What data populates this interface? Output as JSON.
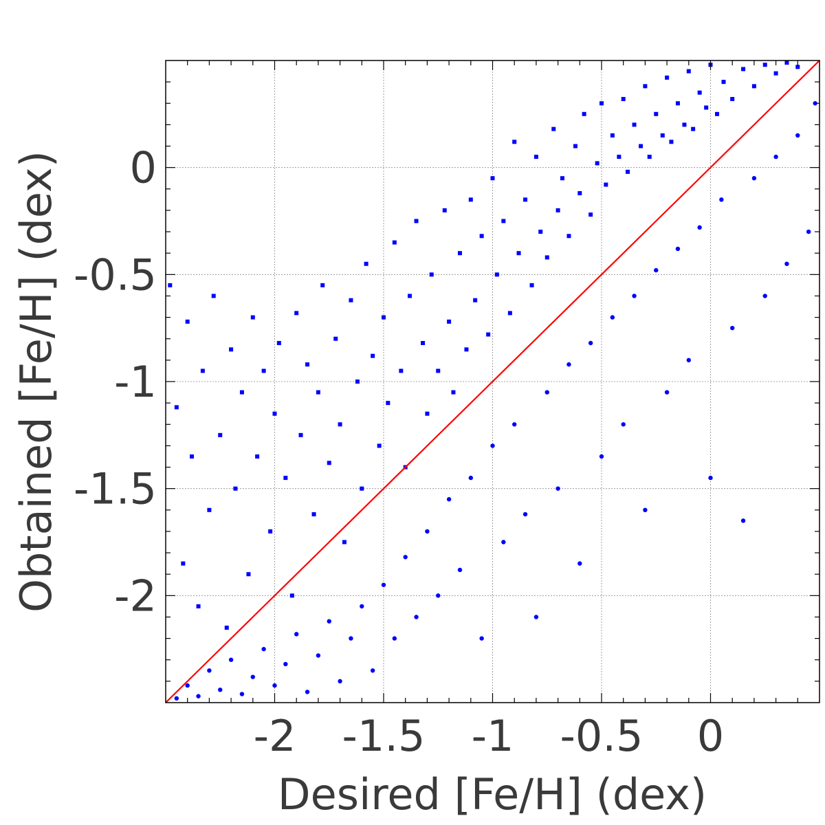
{
  "chart_data": {
    "type": "scatter",
    "title": "",
    "xlabel": "Desired [Fe/H] (dex)",
    "ylabel": "Obtained [Fe/H] (dex)",
    "xlim": [
      -2.5,
      0.5
    ],
    "ylim": [
      -2.5,
      0.5
    ],
    "x_ticks": [
      {
        "value": -2,
        "label": "-2"
      },
      {
        "value": -1.5,
        "label": "-1.5"
      },
      {
        "value": -1,
        "label": "-1"
      },
      {
        "value": -0.5,
        "label": "-0.5"
      },
      {
        "value": 0,
        "label": "0"
      }
    ],
    "y_ticks": [
      {
        "value": -2,
        "label": "-2"
      },
      {
        "value": -1.5,
        "label": "-1.5"
      },
      {
        "value": -1,
        "label": "-1"
      },
      {
        "value": -0.5,
        "label": "-0.5"
      },
      {
        "value": 0,
        "label": "0"
      }
    ],
    "grid": true,
    "series": [
      {
        "marker": "square",
        "color": "#0000ff",
        "points": [
          [
            -2.48,
            -0.55
          ],
          [
            -2.45,
            -1.12
          ],
          [
            -2.42,
            -1.85
          ],
          [
            -2.4,
            -0.72
          ],
          [
            -2.38,
            -1.35
          ],
          [
            -2.35,
            -2.05
          ],
          [
            -2.33,
            -0.95
          ],
          [
            -2.3,
            -1.6
          ],
          [
            -2.28,
            -0.6
          ],
          [
            -2.25,
            -1.25
          ],
          [
            -2.22,
            -2.15
          ],
          [
            -2.2,
            -0.85
          ],
          [
            -2.18,
            -1.5
          ],
          [
            -2.15,
            -1.05
          ],
          [
            -2.12,
            -1.9
          ],
          [
            -2.1,
            -0.7
          ],
          [
            -2.08,
            -1.35
          ],
          [
            -2.05,
            -0.95
          ],
          [
            -2.02,
            -1.7
          ],
          [
            -2.0,
            -1.15
          ],
          [
            -1.98,
            -0.82
          ],
          [
            -1.95,
            -1.45
          ],
          [
            -1.92,
            -2.0
          ],
          [
            -1.9,
            -0.68
          ],
          [
            -1.88,
            -1.25
          ],
          [
            -1.85,
            -0.92
          ],
          [
            -1.82,
            -1.62
          ],
          [
            -1.8,
            -1.05
          ],
          [
            -1.78,
            -0.55
          ],
          [
            -1.75,
            -1.38
          ],
          [
            -1.72,
            -0.8
          ],
          [
            -1.7,
            -1.2
          ],
          [
            -1.68,
            -1.75
          ],
          [
            -1.65,
            -0.62
          ],
          [
            -1.62,
            -1.0
          ],
          [
            -1.6,
            -1.5
          ],
          [
            -1.58,
            -0.45
          ],
          [
            -1.55,
            -0.88
          ],
          [
            -1.52,
            -1.3
          ],
          [
            -1.5,
            -0.7
          ],
          [
            -1.48,
            -1.1
          ],
          [
            -1.45,
            -0.35
          ],
          [
            -1.42,
            -0.95
          ],
          [
            -1.4,
            -1.4
          ],
          [
            -1.38,
            -0.6
          ],
          [
            -1.35,
            -0.25
          ],
          [
            -1.32,
            -0.82
          ],
          [
            -1.3,
            -1.15
          ],
          [
            -1.28,
            -0.5
          ],
          [
            -1.25,
            -0.95
          ],
          [
            -1.22,
            -0.2
          ],
          [
            -1.2,
            -0.72
          ],
          [
            -1.18,
            -1.05
          ],
          [
            -1.15,
            -0.4
          ],
          [
            -1.12,
            -0.85
          ],
          [
            -1.1,
            -0.15
          ],
          [
            -1.08,
            -0.62
          ],
          [
            -1.05,
            -0.32
          ],
          [
            -1.02,
            -0.78
          ],
          [
            -1.0,
            -0.05
          ],
          [
            -0.98,
            -0.5
          ],
          [
            -0.95,
            -0.25
          ],
          [
            -0.92,
            -0.68
          ],
          [
            -0.9,
            0.12
          ],
          [
            -0.88,
            -0.4
          ],
          [
            -0.85,
            -0.15
          ],
          [
            -0.82,
            -0.55
          ],
          [
            -0.8,
            0.05
          ],
          [
            -0.78,
            -0.3
          ],
          [
            -0.75,
            -0.42
          ],
          [
            -0.72,
            0.18
          ],
          [
            -0.7,
            -0.2
          ],
          [
            -0.68,
            -0.05
          ],
          [
            -0.65,
            -0.32
          ],
          [
            -0.62,
            0.1
          ],
          [
            -0.6,
            -0.12
          ],
          [
            -0.58,
            0.25
          ],
          [
            -0.55,
            -0.22
          ],
          [
            -0.52,
            0.02
          ],
          [
            -0.5,
            0.3
          ],
          [
            -0.48,
            -0.08
          ],
          [
            -0.45,
            0.15
          ],
          [
            -0.42,
            0.05
          ],
          [
            -0.4,
            0.32
          ],
          [
            -0.38,
            -0.02
          ],
          [
            -0.35,
            0.2
          ],
          [
            -0.32,
            0.1
          ],
          [
            -0.3,
            0.38
          ],
          [
            -0.28,
            0.05
          ],
          [
            -0.25,
            0.25
          ],
          [
            -0.22,
            0.15
          ],
          [
            -0.2,
            0.42
          ],
          [
            -0.18,
            0.12
          ],
          [
            -0.15,
            0.3
          ],
          [
            -0.12,
            0.2
          ],
          [
            -0.1,
            0.45
          ],
          [
            -0.08,
            0.18
          ],
          [
            -0.05,
            0.35
          ],
          [
            -0.02,
            0.28
          ],
          [
            0.0,
            0.48
          ],
          [
            0.03,
            0.25
          ],
          [
            0.06,
            0.4
          ],
          [
            0.1,
            0.32
          ],
          [
            0.15,
            0.46
          ],
          [
            0.2,
            0.38
          ],
          [
            0.25,
            0.48
          ],
          [
            0.3,
            0.44
          ],
          [
            0.35,
            0.49
          ],
          [
            0.4,
            0.47
          ]
        ]
      },
      {
        "marker": "circle",
        "color": "#0000ff",
        "points": [
          [
            -2.45,
            -2.48
          ],
          [
            -2.4,
            -2.42
          ],
          [
            -2.35,
            -2.47
          ],
          [
            -2.3,
            -2.35
          ],
          [
            -2.25,
            -2.44
          ],
          [
            -2.2,
            -2.3
          ],
          [
            -2.15,
            -2.46
          ],
          [
            -2.1,
            -2.38
          ],
          [
            -2.05,
            -2.25
          ],
          [
            -2.0,
            -2.42
          ],
          [
            -1.95,
            -2.32
          ],
          [
            -1.9,
            -2.18
          ],
          [
            -1.85,
            -2.45
          ],
          [
            -1.8,
            -2.28
          ],
          [
            -1.75,
            -2.12
          ],
          [
            -1.7,
            -2.4
          ],
          [
            -1.65,
            -2.2
          ],
          [
            -1.6,
            -2.05
          ],
          [
            -1.55,
            -2.35
          ],
          [
            -1.5,
            -1.95
          ],
          [
            -1.45,
            -2.2
          ],
          [
            -1.4,
            -1.82
          ],
          [
            -1.35,
            -2.1
          ],
          [
            -1.3,
            -1.7
          ],
          [
            -1.25,
            -2.0
          ],
          [
            -1.2,
            -1.55
          ],
          [
            -1.15,
            -1.88
          ],
          [
            -1.1,
            -1.45
          ],
          [
            -1.05,
            -2.2
          ],
          [
            -1.0,
            -1.3
          ],
          [
            -0.95,
            -1.75
          ],
          [
            -0.9,
            -1.2
          ],
          [
            -0.85,
            -1.62
          ],
          [
            -0.8,
            -2.1
          ],
          [
            -0.75,
            -1.05
          ],
          [
            -0.7,
            -1.5
          ],
          [
            -0.65,
            -0.92
          ],
          [
            -0.6,
            -1.85
          ],
          [
            -0.55,
            -0.82
          ],
          [
            -0.5,
            -1.35
          ],
          [
            -0.45,
            -0.7
          ],
          [
            -0.4,
            -1.2
          ],
          [
            -0.35,
            -0.6
          ],
          [
            -0.3,
            -1.6
          ],
          [
            -0.25,
            -0.48
          ],
          [
            -0.2,
            -1.05
          ],
          [
            -0.15,
            -0.38
          ],
          [
            -0.1,
            -0.9
          ],
          [
            -0.05,
            -0.28
          ],
          [
            0.0,
            -1.45
          ],
          [
            0.05,
            -0.15
          ],
          [
            0.1,
            -0.75
          ],
          [
            0.15,
            -1.65
          ],
          [
            0.2,
            -0.05
          ],
          [
            0.25,
            -0.6
          ],
          [
            0.3,
            0.05
          ],
          [
            0.35,
            -0.45
          ],
          [
            0.4,
            0.15
          ],
          [
            0.45,
            -0.3
          ],
          [
            0.48,
            0.3
          ]
        ]
      },
      {
        "type": "line",
        "name": "",
        "color": "#ff0000",
        "x": [
          -2.5,
          0.5
        ],
        "y": [
          -2.5,
          0.5
        ]
      }
    ]
  }
}
